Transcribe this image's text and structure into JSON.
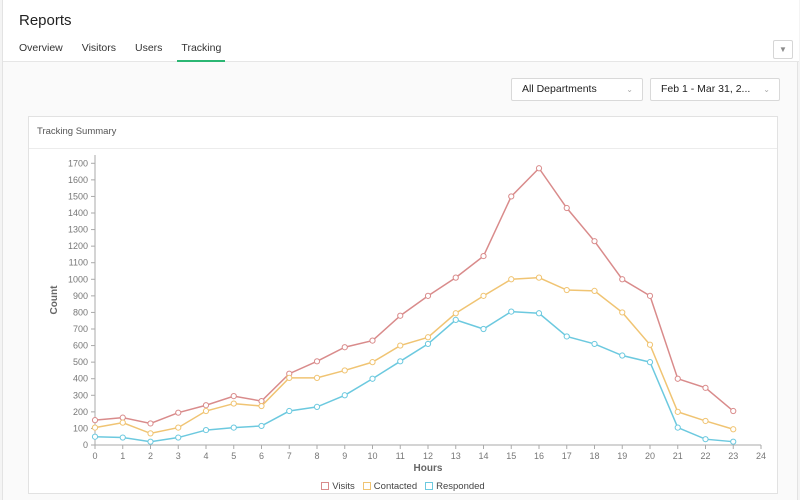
{
  "header": {
    "title": "Reports",
    "tabs": [
      {
        "label": "Overview",
        "active": false
      },
      {
        "label": "Visitors",
        "active": false
      },
      {
        "label": "Users",
        "active": false
      },
      {
        "label": "Tracking",
        "active": true
      }
    ],
    "collapse_icon": "chevron-down-icon"
  },
  "filters": {
    "department": "All Departments",
    "date_range": "Feb 1 - Mar 31, 2..."
  },
  "card": {
    "title": "Tracking Summary"
  },
  "colors": {
    "visits": "#d98b8b",
    "contacted": "#f0c473",
    "responded": "#6cc9df",
    "active_tab": "#2bb673"
  },
  "chart_data": {
    "type": "line",
    "xlabel": "Hours",
    "ylabel": "Count",
    "xlim": [
      0,
      24
    ],
    "ylim": [
      0,
      1750
    ],
    "x_ticks": [
      0,
      1,
      2,
      3,
      4,
      5,
      6,
      7,
      8,
      9,
      10,
      11,
      12,
      13,
      14,
      15,
      16,
      17,
      18,
      19,
      20,
      21,
      22,
      23,
      24
    ],
    "y_ticks": [
      0,
      100,
      200,
      300,
      400,
      500,
      600,
      700,
      800,
      900,
      1000,
      1100,
      1200,
      1300,
      1400,
      1500,
      1600,
      1700
    ],
    "grid": false,
    "legend_position": "bottom-center",
    "x": [
      0,
      1,
      2,
      3,
      4,
      5,
      6,
      7,
      8,
      9,
      10,
      11,
      12,
      13,
      14,
      15,
      16,
      17,
      18,
      19,
      20,
      21,
      22,
      23
    ],
    "series": [
      {
        "name": "Visits",
        "values": [
          150,
          165,
          130,
          195,
          240,
          295,
          265,
          430,
          505,
          590,
          630,
          780,
          900,
          1010,
          1140,
          1500,
          1670,
          1430,
          1230,
          1000,
          900,
          400,
          345,
          205
        ]
      },
      {
        "name": "Contacted",
        "values": [
          105,
          135,
          70,
          105,
          205,
          250,
          235,
          405,
          405,
          450,
          500,
          600,
          650,
          795,
          900,
          1000,
          1010,
          935,
          930,
          800,
          605,
          200,
          145,
          95
        ]
      },
      {
        "name": "Responded",
        "values": [
          50,
          45,
          20,
          45,
          90,
          105,
          115,
          205,
          230,
          300,
          400,
          505,
          610,
          755,
          700,
          805,
          795,
          655,
          610,
          540,
          500,
          105,
          35,
          20
        ]
      }
    ]
  }
}
